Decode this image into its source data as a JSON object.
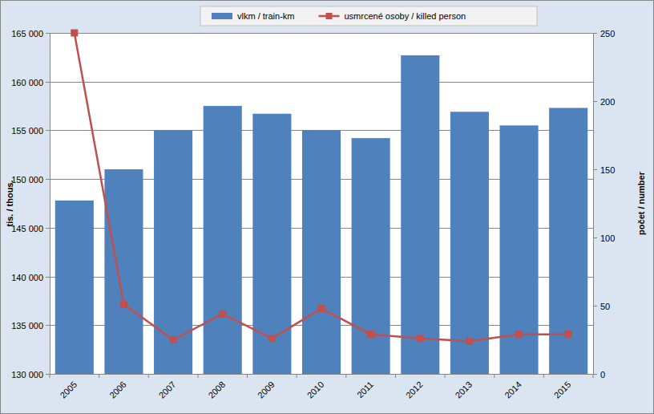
{
  "chart_data": {
    "type": "bar",
    "y_label": "tis. / thous.",
    "y2_label": "počet / number",
    "categories": [
      "2005",
      "2006",
      "2007",
      "2008",
      "2009",
      "2010",
      "2011",
      "2012",
      "2013",
      "2014",
      "2015"
    ],
    "series": [
      {
        "name": "vlkm / train-km",
        "type": "bar",
        "color": "#4f81bd",
        "values": [
          147800,
          151000,
          155000,
          157500,
          156700,
          155000,
          154200,
          162700,
          156900,
          155500,
          157300
        ]
      },
      {
        "name": "usmrcené osoby / killed person",
        "type": "line",
        "axis": "y2",
        "color": "#c0504d",
        "marker": "square",
        "values": [
          250,
          51,
          25,
          44,
          26,
          48,
          29,
          26,
          24,
          29,
          29
        ]
      }
    ],
    "ylim": [
      130000,
      165000
    ],
    "yticks": [
      {
        "value": 130000,
        "label": "130 000"
      },
      {
        "value": 135000,
        "label": "135 000"
      },
      {
        "value": 140000,
        "label": "140 000"
      },
      {
        "value": 145000,
        "label": "145 000"
      },
      {
        "value": 150000,
        "label": "150 000"
      },
      {
        "value": 155000,
        "label": "155 000"
      },
      {
        "value": 160000,
        "label": "160 000"
      },
      {
        "value": 165000,
        "label": "165 000"
      }
    ],
    "y2lim": [
      0,
      250
    ],
    "y2ticks": [
      0,
      50,
      100,
      150,
      200,
      250
    ],
    "grid": true,
    "legend": "top"
  }
}
